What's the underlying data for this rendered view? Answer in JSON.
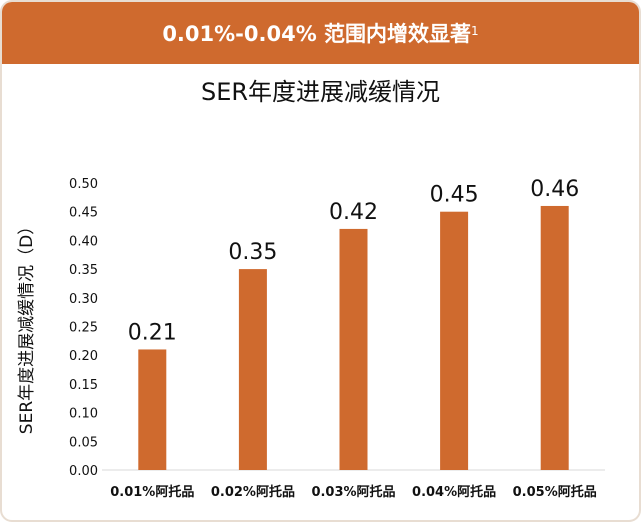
{
  "header": {
    "text": "0.01%-0.04% 范围内增效显著",
    "superscript": "1"
  },
  "chart_data": {
    "type": "bar",
    "title": "SER年度进展减缓情况",
    "ylabel": "SER年度进展减缓情况（D）",
    "xlabel": "",
    "categories": [
      "0.01%阿托品",
      "0.02%阿托品",
      "0.03%阿托品",
      "0.04%阿托品",
      "0.05%阿托品"
    ],
    "values": [
      0.21,
      0.35,
      0.42,
      0.45,
      0.46
    ],
    "data_labels": [
      "0.21",
      "0.35",
      "0.42",
      "0.45",
      "0.46"
    ],
    "ylim": [
      0,
      0.5
    ],
    "yticks": [
      "0.00",
      "0.05",
      "0.10",
      "0.15",
      "0.20",
      "0.25",
      "0.30",
      "0.35",
      "0.40",
      "0.45",
      "0.50"
    ],
    "grid": false,
    "color": "#cf6a2e",
    "header_color": "#cf6a2e"
  }
}
